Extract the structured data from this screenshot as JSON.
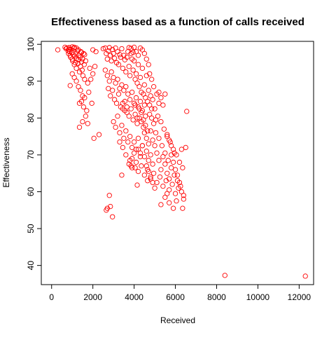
{
  "chart_data": {
    "type": "scatter",
    "title": "Effectiveness based as a function of calls received",
    "xlabel": "Received",
    "ylabel": "Effectiveness",
    "xlim": [
      -500,
      12700
    ],
    "ylim": [
      34.8,
      100.8
    ],
    "xticks": [
      0,
      2000,
      4000,
      6000,
      8000,
      10000,
      12000
    ],
    "yticks": [
      40,
      50,
      60,
      70,
      80,
      90,
      100
    ],
    "grid": false,
    "legend": "none",
    "marker": "open-circle",
    "point_color": "#FF0000",
    "points": [
      [
        300,
        98.5
      ],
      [
        650,
        99.2
      ],
      [
        700,
        98.8
      ],
      [
        750,
        99.0
      ],
      [
        800,
        98.2
      ],
      [
        820,
        97.5
      ],
      [
        850,
        99.1
      ],
      [
        880,
        98.0
      ],
      [
        900,
        97.0
      ],
      [
        920,
        96.5
      ],
      [
        950,
        98.6
      ],
      [
        980,
        97.8
      ],
      [
        1000,
        96.0
      ],
      [
        1020,
        95.5
      ],
      [
        1050,
        97.2
      ],
      [
        1080,
        98.9
      ],
      [
        1100,
        94.5
      ],
      [
        1120,
        96.8
      ],
      [
        1150,
        95.0
      ],
      [
        1180,
        97.5
      ],
      [
        1200,
        93.5
      ],
      [
        1220,
        96.2
      ],
      [
        1250,
        98.3
      ],
      [
        1280,
        94.8
      ],
      [
        1300,
        95.8
      ],
      [
        1320,
        97.0
      ],
      [
        1350,
        92.5
      ],
      [
        1380,
        96.5
      ],
      [
        1400,
        94.0
      ],
      [
        1420,
        98.0
      ],
      [
        1450,
        95.2
      ],
      [
        1480,
        93.0
      ],
      [
        1500,
        96.0
      ],
      [
        1520,
        91.5
      ],
      [
        1550,
        97.5
      ],
      [
        1580,
        94.5
      ],
      [
        1600,
        90.5
      ],
      [
        1000,
        92.0
      ],
      [
        1100,
        91.0
      ],
      [
        1200,
        90.0
      ],
      [
        1300,
        88.5
      ],
      [
        900,
        88.8
      ],
      [
        1400,
        87.5
      ],
      [
        1500,
        86.0
      ],
      [
        1450,
        84.5
      ],
      [
        1350,
        84.0
      ],
      [
        1550,
        83.0
      ],
      [
        1600,
        85.5
      ],
      [
        1700,
        82.0
      ],
      [
        1650,
        80.5
      ],
      [
        1500,
        79.0
      ],
      [
        1350,
        77.5
      ],
      [
        1750,
        78.5
      ],
      [
        1800,
        87.0
      ],
      [
        1750,
        89.5
      ],
      [
        1900,
        90.5
      ],
      [
        2000,
        92.0
      ],
      [
        1850,
        93.5
      ],
      [
        2100,
        94.0
      ],
      [
        1950,
        84.0
      ],
      [
        2050,
        74.5
      ],
      [
        2300,
        75.5
      ],
      [
        1300,
        98.5
      ],
      [
        1100,
        99.2
      ],
      [
        850,
        98.6
      ],
      [
        1200,
        99.0
      ],
      [
        1000,
        99.3
      ],
      [
        1450,
        97.8
      ],
      [
        1600,
        97.2
      ],
      [
        1650,
        95.5
      ],
      [
        2000,
        98.5
      ],
      [
        2150,
        98.0
      ],
      [
        2500,
        98.8
      ],
      [
        2600,
        99.0
      ],
      [
        2650,
        97.5
      ],
      [
        2700,
        96.0
      ],
      [
        2750,
        98.2
      ],
      [
        2800,
        99.1
      ],
      [
        2850,
        97.0
      ],
      [
        2900,
        95.5
      ],
      [
        2950,
        98.6
      ],
      [
        3000,
        97.5
      ],
      [
        3050,
        96.2
      ],
      [
        3100,
        99.0
      ],
      [
        3150,
        95.0
      ],
      [
        3200,
        98.0
      ],
      [
        3250,
        94.5
      ],
      [
        3300,
        97.2
      ],
      [
        3350,
        96.5
      ],
      [
        3400,
        98.8
      ],
      [
        3450,
        93.5
      ],
      [
        3500,
        97.0
      ],
      [
        3550,
        95.8
      ],
      [
        3600,
        92.5
      ],
      [
        3650,
        96.5
      ],
      [
        3700,
        98.0
      ],
      [
        3750,
        94.0
      ],
      [
        3800,
        91.5
      ],
      [
        3850,
        97.5
      ],
      [
        3900,
        96.0
      ],
      [
        3950,
        93.0
      ],
      [
        4000,
        95.5
      ],
      [
        4050,
        90.5
      ],
      [
        4100,
        92.0
      ],
      [
        4150,
        89.5
      ],
      [
        4200,
        94.5
      ],
      [
        4250,
        88.5
      ],
      [
        4300,
        91.0
      ],
      [
        4350,
        87.0
      ],
      [
        4400,
        93.5
      ],
      [
        4450,
        86.5
      ],
      [
        4500,
        89.0
      ],
      [
        4550,
        85.5
      ],
      [
        4600,
        91.5
      ],
      [
        4650,
        84.5
      ],
      [
        4700,
        87.5
      ],
      [
        4750,
        83.5
      ],
      [
        4800,
        86.0
      ],
      [
        4850,
        82.5
      ],
      [
        4900,
        85.0
      ],
      [
        2600,
        93.0
      ],
      [
        2700,
        91.5
      ],
      [
        2800,
        90.0
      ],
      [
        2900,
        92.5
      ],
      [
        3000,
        91.0
      ],
      [
        3100,
        89.5
      ],
      [
        3200,
        90.5
      ],
      [
        3300,
        88.0
      ],
      [
        3400,
        89.0
      ],
      [
        3500,
        87.5
      ],
      [
        3600,
        88.5
      ],
      [
        3700,
        86.5
      ],
      [
        3800,
        85.0
      ],
      [
        3900,
        87.0
      ],
      [
        4000,
        84.0
      ],
      [
        4100,
        85.5
      ],
      [
        4200,
        83.0
      ],
      [
        4300,
        84.5
      ],
      [
        4400,
        82.0
      ],
      [
        4500,
        83.5
      ],
      [
        2750,
        88.0
      ],
      [
        2850,
        86.0
      ],
      [
        2950,
        87.5
      ],
      [
        3050,
        85.0
      ],
      [
        3150,
        84.0
      ],
      [
        3250,
        86.5
      ],
      [
        3350,
        83.0
      ],
      [
        3450,
        82.5
      ],
      [
        3550,
        84.5
      ],
      [
        3650,
        81.5
      ],
      [
        3750,
        80.5
      ],
      [
        3850,
        82.5
      ],
      [
        3950,
        79.5
      ],
      [
        4050,
        81.0
      ],
      [
        4150,
        78.5
      ],
      [
        4250,
        80.0
      ],
      [
        4350,
        79.0
      ],
      [
        4450,
        77.5
      ],
      [
        4550,
        78.0
      ],
      [
        4650,
        76.5
      ],
      [
        3000,
        79.0
      ],
      [
        3100,
        77.5
      ],
      [
        3200,
        80.5
      ],
      [
        3300,
        76.0
      ],
      [
        3400,
        78.0
      ],
      [
        3500,
        74.5
      ],
      [
        3600,
        76.5
      ],
      [
        3700,
        73.5
      ],
      [
        3800,
        75.0
      ],
      [
        3900,
        72.0
      ],
      [
        4000,
        73.5
      ],
      [
        4100,
        71.5
      ],
      [
        4200,
        74.5
      ],
      [
        4300,
        70.5
      ],
      [
        4400,
        72.5
      ],
      [
        4500,
        69.5
      ],
      [
        4600,
        71.0
      ],
      [
        4700,
        68.5
      ],
      [
        4800,
        70.0
      ],
      [
        4900,
        67.5
      ],
      [
        3300,
        73.5
      ],
      [
        3450,
        72.0
      ],
      [
        3600,
        70.0
      ],
      [
        3750,
        67.5
      ],
      [
        3900,
        69.0
      ],
      [
        4050,
        66.5
      ],
      [
        4200,
        65.5
      ],
      [
        4350,
        67.0
      ],
      [
        4500,
        64.5
      ],
      [
        4650,
        66.0
      ],
      [
        4800,
        63.5
      ],
      [
        4950,
        65.0
      ],
      [
        5100,
        62.5
      ],
      [
        5250,
        64.0
      ],
      [
        5400,
        61.5
      ],
      [
        5550,
        63.0
      ],
      [
        5700,
        60.5
      ],
      [
        5850,
        62.0
      ],
      [
        6000,
        59.5
      ],
      [
        6150,
        61.0
      ],
      [
        5000,
        82.5
      ],
      [
        5150,
        80.5
      ],
      [
        5300,
        79.0
      ],
      [
        5450,
        77.0
      ],
      [
        5600,
        75.0
      ],
      [
        5750,
        73.5
      ],
      [
        5900,
        71.5
      ],
      [
        6050,
        70.0
      ],
      [
        6200,
        68.0
      ],
      [
        6350,
        66.5
      ],
      [
        5050,
        76.0
      ],
      [
        5200,
        74.5
      ],
      [
        5350,
        72.5
      ],
      [
        5500,
        70.5
      ],
      [
        5650,
        68.5
      ],
      [
        5800,
        66.5
      ],
      [
        5950,
        64.5
      ],
      [
        6100,
        63.0
      ],
      [
        6250,
        61.5
      ],
      [
        6400,
        59.0
      ],
      [
        5100,
        86.5
      ],
      [
        5200,
        84.0
      ],
      [
        5300,
        85.5
      ],
      [
        5400,
        83.5
      ],
      [
        5500,
        86.5
      ],
      [
        5200,
        87.0
      ],
      [
        4950,
        88.5
      ],
      [
        4850,
        90.5
      ],
      [
        4750,
        92.0
      ],
      [
        4700,
        94.5
      ],
      [
        4600,
        96.0
      ],
      [
        4500,
        97.5
      ],
      [
        4400,
        98.5
      ],
      [
        4300,
        99.0
      ],
      [
        4200,
        97.0
      ],
      [
        4100,
        98.0
      ],
      [
        4000,
        99.2
      ],
      [
        3950,
        97.8
      ],
      [
        3850,
        98.9
      ],
      [
        3750,
        99.1
      ],
      [
        5000,
        72.5
      ],
      [
        5100,
        70.5
      ],
      [
        5200,
        68.5
      ],
      [
        4900,
        74.0
      ],
      [
        4800,
        76.5
      ],
      [
        5300,
        66.0
      ],
      [
        5400,
        69.5
      ],
      [
        5500,
        67.5
      ],
      [
        5600,
        65.0
      ],
      [
        5700,
        63.5
      ],
      [
        4700,
        73.0
      ],
      [
        4600,
        74.5
      ],
      [
        4500,
        76.0
      ],
      [
        4400,
        72.5
      ],
      [
        4300,
        69.5
      ],
      [
        4200,
        71.5
      ],
      [
        4100,
        68.0
      ],
      [
        4000,
        70.5
      ],
      [
        3900,
        66.5
      ],
      [
        3800,
        68.5
      ],
      [
        5800,
        70.0
      ],
      [
        5900,
        68.0
      ],
      [
        6000,
        66.0
      ],
      [
        6100,
        64.5
      ],
      [
        6200,
        62.5
      ],
      [
        6300,
        60.0
      ],
      [
        6400,
        58.0
      ],
      [
        5500,
        58.5
      ],
      [
        5700,
        57.0
      ],
      [
        5900,
        55.5
      ],
      [
        6050,
        57.5
      ],
      [
        6350,
        55.5
      ],
      [
        5300,
        56.5
      ],
      [
        5600,
        59.5
      ],
      [
        5000,
        61.0
      ],
      [
        4900,
        62.5
      ],
      [
        4800,
        64.0
      ],
      [
        4700,
        65.5
      ],
      [
        4600,
        67.0
      ],
      [
        6550,
        81.8
      ],
      [
        6500,
        72.0
      ],
      [
        6300,
        71.5
      ],
      [
        5950,
        70.5
      ],
      [
        5700,
        74.0
      ],
      [
        5600,
        75.5
      ],
      [
        5800,
        72.5
      ],
      [
        2700,
        55.5
      ],
      [
        2850,
        56.0
      ],
      [
        2950,
        53.2
      ],
      [
        2800,
        59.0
      ],
      [
        2650,
        55.0
      ],
      [
        4150,
        61.8
      ],
      [
        4650,
        63.0
      ],
      [
        3400,
        64.5
      ],
      [
        3850,
        67.0
      ],
      [
        8400,
        37.3
      ],
      [
        12300,
        37.1
      ],
      [
        3450,
        84.0
      ],
      [
        3550,
        82.0
      ],
      [
        3650,
        83.0
      ],
      [
        4750,
        81.0
      ],
      [
        4850,
        80.0
      ],
      [
        4950,
        78.5
      ],
      [
        5050,
        79.5
      ],
      [
        4550,
        80.5
      ],
      [
        4450,
        79.5
      ],
      [
        4350,
        81.5
      ],
      [
        4250,
        82.5
      ],
      [
        4150,
        80.0
      ],
      [
        4050,
        83.5
      ]
    ]
  }
}
